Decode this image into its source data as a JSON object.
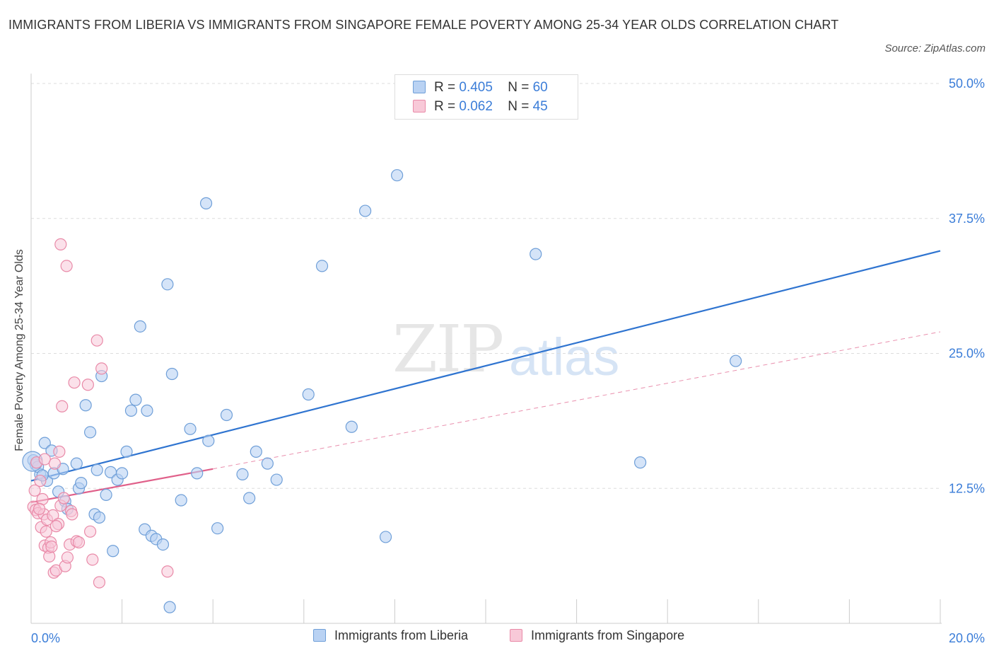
{
  "header": {
    "title": "IMMIGRANTS FROM LIBERIA VS IMMIGRANTS FROM SINGAPORE FEMALE POVERTY AMONG 25-34 YEAR OLDS CORRELATION CHART",
    "source": "Source: ZipAtlas.com"
  },
  "watermark": {
    "zip": "ZIP",
    "atlas": "atlas"
  },
  "legend_top": {
    "r_label": "R =",
    "n_label": "N =",
    "rows": [
      {
        "r": "0.405",
        "n": "60"
      },
      {
        "r": "0.062",
        "n": "45"
      }
    ]
  },
  "colors": {
    "liberia_fill": "#b9d2f3",
    "liberia_stroke": "#6f9fd8",
    "liberia_line": "#2f74d0",
    "singapore_fill": "#f8c9d8",
    "singapore_stroke": "#e98aa8",
    "singapore_line": "#e0608a",
    "axis_label": "#3b7dd8",
    "grid": "#dddddd"
  },
  "chart_data": {
    "type": "scatter",
    "title": "IMMIGRANTS FROM LIBERIA VS IMMIGRANTS FROM SINGAPORE FEMALE POVERTY AMONG 25-34 YEAR OLDS CORRELATION CHART",
    "xlabel": "",
    "ylabel": "Female Poverty Among 25-34 Year Olds",
    "xlim": [
      0,
      20
    ],
    "ylim": [
      0,
      50
    ],
    "x_tick_labels": [
      "0.0%",
      "20.0%"
    ],
    "y_ticks": [
      12.5,
      25.0,
      37.5,
      50.0
    ],
    "y_tick_labels": [
      "12.5%",
      "25.0%",
      "37.5%",
      "50.0%"
    ],
    "grid": true,
    "legend_position": "bottom",
    "series": [
      {
        "name": "Immigrants from Liberia",
        "R": 0.405,
        "N": 60,
        "trend": {
          "x": [
            0,
            20
          ],
          "y": [
            13.2,
            34.5
          ],
          "style": "solid"
        },
        "points": [
          [
            0.05,
            15.1
          ],
          [
            0.1,
            14.7
          ],
          [
            0.2,
            13.8
          ],
          [
            0.3,
            16.7
          ],
          [
            0.35,
            13.2
          ],
          [
            0.45,
            16.0
          ],
          [
            0.5,
            13.9
          ],
          [
            0.6,
            12.2
          ],
          [
            0.7,
            14.3
          ],
          [
            0.75,
            11.3
          ],
          [
            0.8,
            10.6
          ],
          [
            1.0,
            14.8
          ],
          [
            1.05,
            12.5
          ],
          [
            1.1,
            13.0
          ],
          [
            1.2,
            20.2
          ],
          [
            1.3,
            17.7
          ],
          [
            1.4,
            10.1
          ],
          [
            1.45,
            14.2
          ],
          [
            1.5,
            9.8
          ],
          [
            1.55,
            22.9
          ],
          [
            1.65,
            11.9
          ],
          [
            1.75,
            14.0
          ],
          [
            1.8,
            6.7
          ],
          [
            1.9,
            13.3
          ],
          [
            2.0,
            13.9
          ],
          [
            2.1,
            15.9
          ],
          [
            2.2,
            19.7
          ],
          [
            2.3,
            20.7
          ],
          [
            2.4,
            27.5
          ],
          [
            2.5,
            8.7
          ],
          [
            2.55,
            19.7
          ],
          [
            2.65,
            8.1
          ],
          [
            2.75,
            7.8
          ],
          [
            2.9,
            7.3
          ],
          [
            3.0,
            31.4
          ],
          [
            3.05,
            1.5
          ],
          [
            3.1,
            23.1
          ],
          [
            3.3,
            11.4
          ],
          [
            3.5,
            18.0
          ],
          [
            3.65,
            13.9
          ],
          [
            3.9,
            16.9
          ],
          [
            3.85,
            38.9
          ],
          [
            4.1,
            8.8
          ],
          [
            4.3,
            19.3
          ],
          [
            4.65,
            13.8
          ],
          [
            4.8,
            11.6
          ],
          [
            4.95,
            15.9
          ],
          [
            5.2,
            14.8
          ],
          [
            5.4,
            13.3
          ],
          [
            6.1,
            21.2
          ],
          [
            6.4,
            33.1
          ],
          [
            7.05,
            18.2
          ],
          [
            7.35,
            38.2
          ],
          [
            7.8,
            8.0
          ],
          [
            8.05,
            41.5
          ],
          [
            11.1,
            34.2
          ],
          [
            13.4,
            14.9
          ],
          [
            15.5,
            24.3
          ],
          [
            0.15,
            14.5
          ],
          [
            0.25,
            13.7
          ]
        ]
      },
      {
        "name": "Immigrants from Singapore",
        "R": 0.062,
        "N": 45,
        "trend_solid": {
          "x": [
            0,
            4
          ],
          "y": [
            11.2,
            14.3
          ]
        },
        "trend_dashed": {
          "x": [
            4,
            20
          ],
          "y": [
            14.3,
            27.0
          ]
        },
        "points": [
          [
            0.05,
            10.8
          ],
          [
            0.08,
            12.3
          ],
          [
            0.1,
            10.5
          ],
          [
            0.15,
            10.2
          ],
          [
            0.2,
            13.2
          ],
          [
            0.22,
            8.9
          ],
          [
            0.25,
            11.5
          ],
          [
            0.28,
            10.1
          ],
          [
            0.3,
            7.2
          ],
          [
            0.33,
            8.5
          ],
          [
            0.35,
            9.6
          ],
          [
            0.38,
            7.0
          ],
          [
            0.4,
            6.2
          ],
          [
            0.43,
            7.5
          ],
          [
            0.45,
            7.1
          ],
          [
            0.48,
            10.0
          ],
          [
            0.5,
            4.7
          ],
          [
            0.55,
            4.9
          ],
          [
            0.6,
            9.2
          ],
          [
            0.62,
            15.9
          ],
          [
            0.65,
            10.9
          ],
          [
            0.68,
            20.1
          ],
          [
            0.72,
            11.6
          ],
          [
            0.75,
            5.3
          ],
          [
            0.78,
            33.1
          ],
          [
            0.8,
            6.1
          ],
          [
            0.85,
            7.3
          ],
          [
            0.88,
            10.4
          ],
          [
            0.9,
            10.1
          ],
          [
            0.95,
            22.3
          ],
          [
            1.0,
            7.6
          ],
          [
            1.05,
            7.5
          ],
          [
            0.65,
            35.1
          ],
          [
            1.25,
            22.1
          ],
          [
            1.3,
            8.5
          ],
          [
            1.35,
            5.9
          ],
          [
            1.45,
            26.2
          ],
          [
            1.5,
            3.8
          ],
          [
            1.55,
            23.6
          ],
          [
            3.0,
            4.8
          ],
          [
            0.12,
            14.9
          ],
          [
            0.18,
            10.6
          ],
          [
            0.3,
            15.2
          ],
          [
            0.52,
            14.8
          ],
          [
            0.55,
            9.0
          ]
        ]
      }
    ]
  },
  "legend_bottom": {
    "items": [
      {
        "label": "Immigrants from Liberia"
      },
      {
        "label": "Immigrants from Singapore"
      }
    ]
  }
}
